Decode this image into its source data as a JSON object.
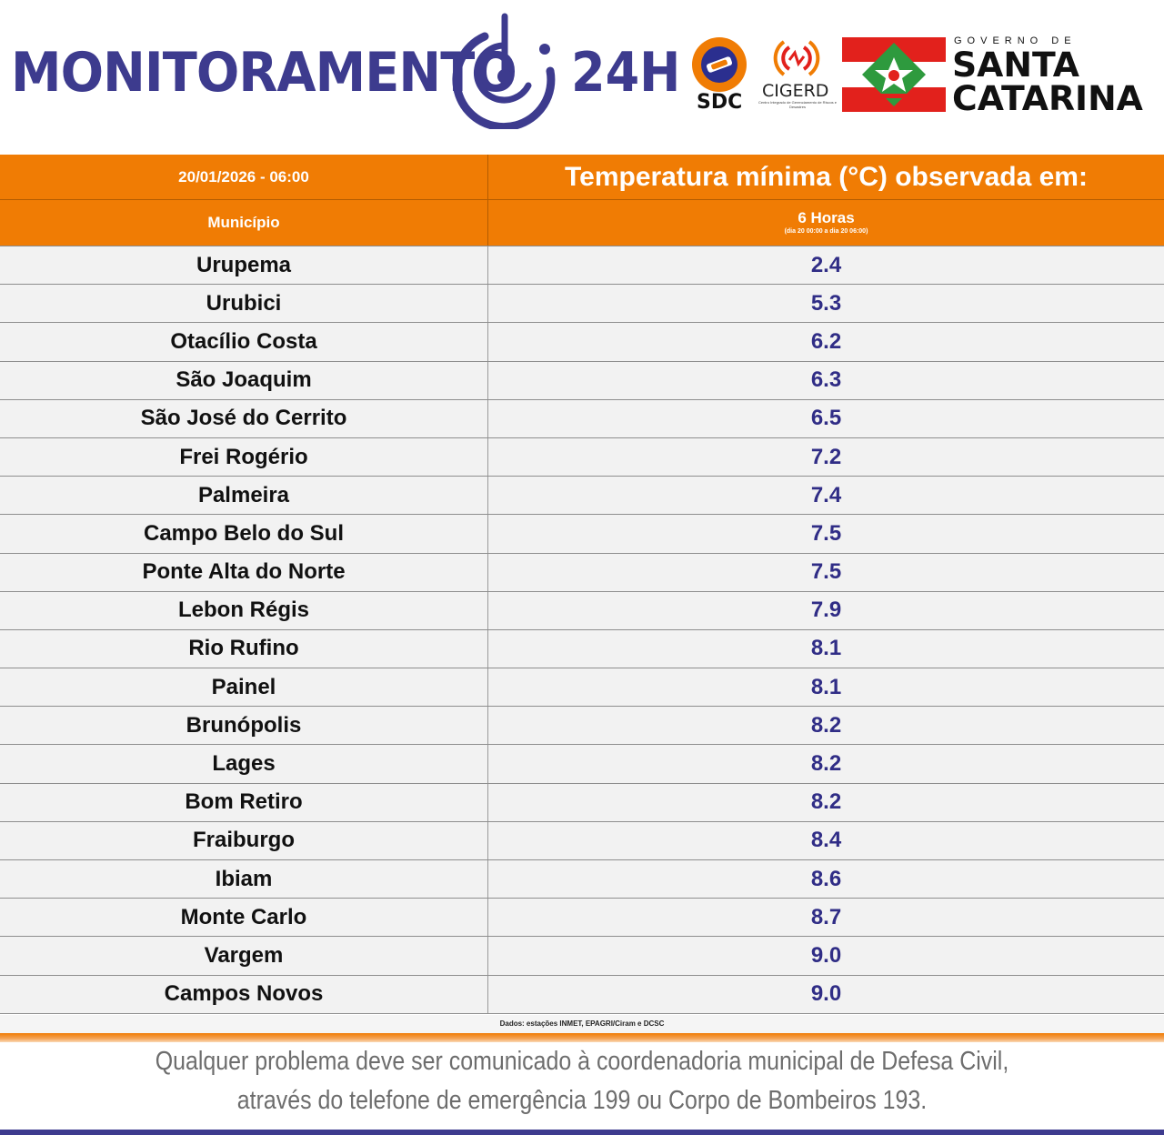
{
  "header": {
    "brand": "MONITORAMENTO",
    "brand_suffix": "24H",
    "sdc_label": "SDC",
    "cigerd_label": "CIGERD",
    "cigerd_sub": "Centro Integrado de Gerenciamento de Riscos e Desastres",
    "gov_small": "GOVERNO DE",
    "gov_line1": "SANTA",
    "gov_line2": "CATARINA"
  },
  "table": {
    "datetime": "20/01/2026 - 06:00",
    "title": "Temperatura mínima (°C) observada em:",
    "col_municipio": "Município",
    "col_hours": "6 Horas",
    "col_range": "(dia 20 00:00 a dia 20 06:00)",
    "rows": [
      {
        "municipio": "Urupema",
        "temp": "2.4"
      },
      {
        "municipio": "Urubici",
        "temp": "5.3"
      },
      {
        "municipio": "Otacílio Costa",
        "temp": "6.2"
      },
      {
        "municipio": "São Joaquim",
        "temp": "6.3"
      },
      {
        "municipio": "São José do Cerrito",
        "temp": "6.5"
      },
      {
        "municipio": "Frei Rogério",
        "temp": "7.2"
      },
      {
        "municipio": "Palmeira",
        "temp": "7.4"
      },
      {
        "municipio": "Campo Belo do Sul",
        "temp": "7.5"
      },
      {
        "municipio": "Ponte Alta do Norte",
        "temp": "7.5"
      },
      {
        "municipio": "Lebon Régis",
        "temp": "7.9"
      },
      {
        "municipio": "Rio Rufino",
        "temp": "8.1"
      },
      {
        "municipio": "Painel",
        "temp": "8.1"
      },
      {
        "municipio": "Brunópolis",
        "temp": "8.2"
      },
      {
        "municipio": "Lages",
        "temp": "8.2"
      },
      {
        "municipio": "Bom Retiro",
        "temp": "8.2"
      },
      {
        "municipio": "Fraiburgo",
        "temp": "8.4"
      },
      {
        "municipio": "Ibiam",
        "temp": "8.6"
      },
      {
        "municipio": "Monte Carlo",
        "temp": "8.7"
      },
      {
        "municipio": "Vargem",
        "temp": "9.0"
      },
      {
        "municipio": "Campos Novos",
        "temp": "9.0"
      }
    ],
    "source": "Dados: estações INMET, EPAGRI/Ciram e DCSC"
  },
  "footer": {
    "line1": "Qualquer problema deve ser comunicado à coordenadoria municipal de Defesa Civil,",
    "line2": "através do telefone de emergência 199 ou Corpo de Bombeiros 193."
  },
  "colors": {
    "orange": "#f07c04",
    "brand_blue": "#3d3b8e",
    "value_blue": "#302d86",
    "flag_red": "#e2211c",
    "flag_green": "#2e9a3e"
  }
}
